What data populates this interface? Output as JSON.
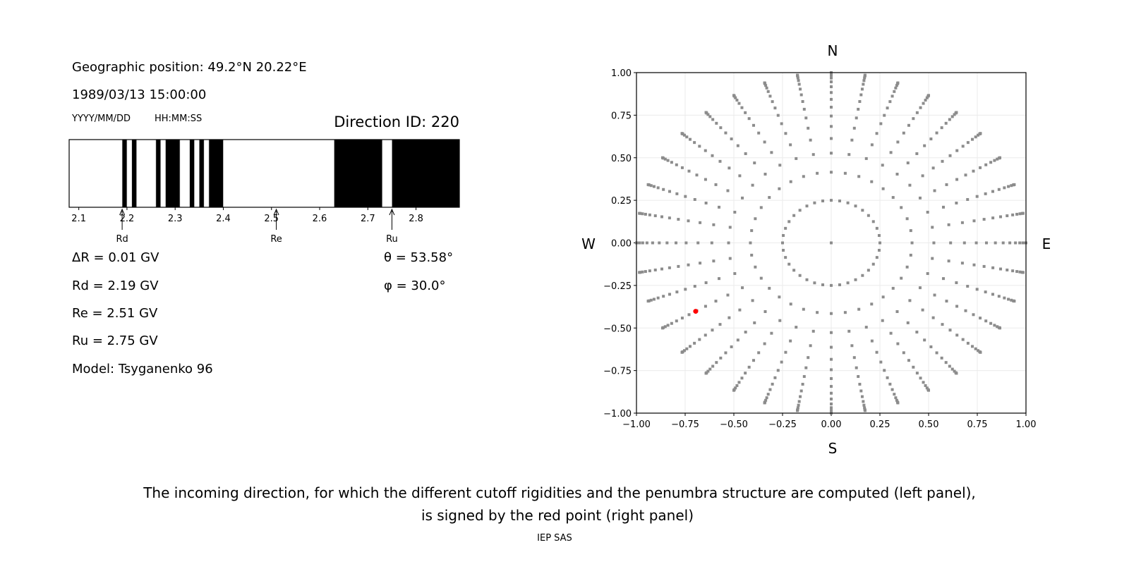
{
  "left_panel": {
    "position": "Geographic position: 49.2°N 20.22°E",
    "datetime": "1989/03/13 15:00:00",
    "date_format": "YYYY/MM/DD",
    "time_format": "HH:MM:SS",
    "direction_id": "Direction ID: 220",
    "delta_r": "ΔR = 0.01 GV",
    "rd": "Rd = 2.19 GV",
    "re": "Re = 2.51 GV",
    "ru": "Ru = 2.75 GV",
    "model": "Model: Tsyganenko 96",
    "theta": "θ = 53.58°",
    "phi": "φ = 30.0°"
  },
  "chart_data": [
    {
      "type": "bar",
      "subtype": "penumbra",
      "xlim": [
        2.08,
        2.89
      ],
      "xticks": [
        2.1,
        2.2,
        2.3,
        2.4,
        2.5,
        2.6,
        2.7,
        2.8
      ],
      "xtick_labels": [
        "2.1",
        "2.2",
        "2.3",
        "2.4",
        "2.5",
        "2.6",
        "2.7",
        "2.8"
      ],
      "forbidden_bands": [
        [
          2.19,
          2.2
        ],
        [
          2.21,
          2.22
        ],
        [
          2.26,
          2.27
        ],
        [
          2.28,
          2.31
        ],
        [
          2.33,
          2.34
        ],
        [
          2.35,
          2.36
        ],
        [
          2.37,
          2.4
        ],
        [
          2.63,
          2.73
        ],
        [
          2.75,
          2.89
        ]
      ],
      "band_color": "#000000",
      "markers": [
        {
          "label": "Rd",
          "value": 2.19
        },
        {
          "label": "Re",
          "value": 2.51
        },
        {
          "label": "Ru",
          "value": 2.75
        }
      ]
    },
    {
      "type": "scatter",
      "xlim": [
        -1,
        1
      ],
      "ylim": [
        -1,
        1
      ],
      "ticks": [
        -1,
        -0.75,
        -0.5,
        -0.25,
        0,
        0.25,
        0.5,
        0.75,
        1
      ],
      "tick_labels": [
        "−1.00",
        "−0.75",
        "−0.50",
        "−0.25",
        "0.00",
        "0.25",
        "0.50",
        "0.75",
        "1.00"
      ],
      "grid": true,
      "compass": {
        "n": "N",
        "s": "S",
        "w": "W",
        "e": "E"
      },
      "point_color": "#8c8c8c",
      "grid_points": {
        "center": [
          0,
          0
        ],
        "inner_ring": {
          "radius": 0.25,
          "count": 36
        },
        "ray_azimuth_step_deg": 10,
        "ray_radii": [
          0.415,
          0.527,
          0.613,
          0.684,
          0.745,
          0.797,
          0.843,
          0.883,
          0.917,
          0.946,
          0.968,
          0.984,
          0.995,
          0.9995,
          1.0
        ]
      },
      "selected_point": {
        "x": -0.696,
        "y": -0.402,
        "color": "#ff0000"
      }
    }
  ],
  "caption": {
    "line1": "The incoming direction, for which the different cutoff rigidities and the penumbra structure are computed (left panel),",
    "line2": "is signed by the red point (right panel)"
  },
  "footer": "IEP SAS"
}
